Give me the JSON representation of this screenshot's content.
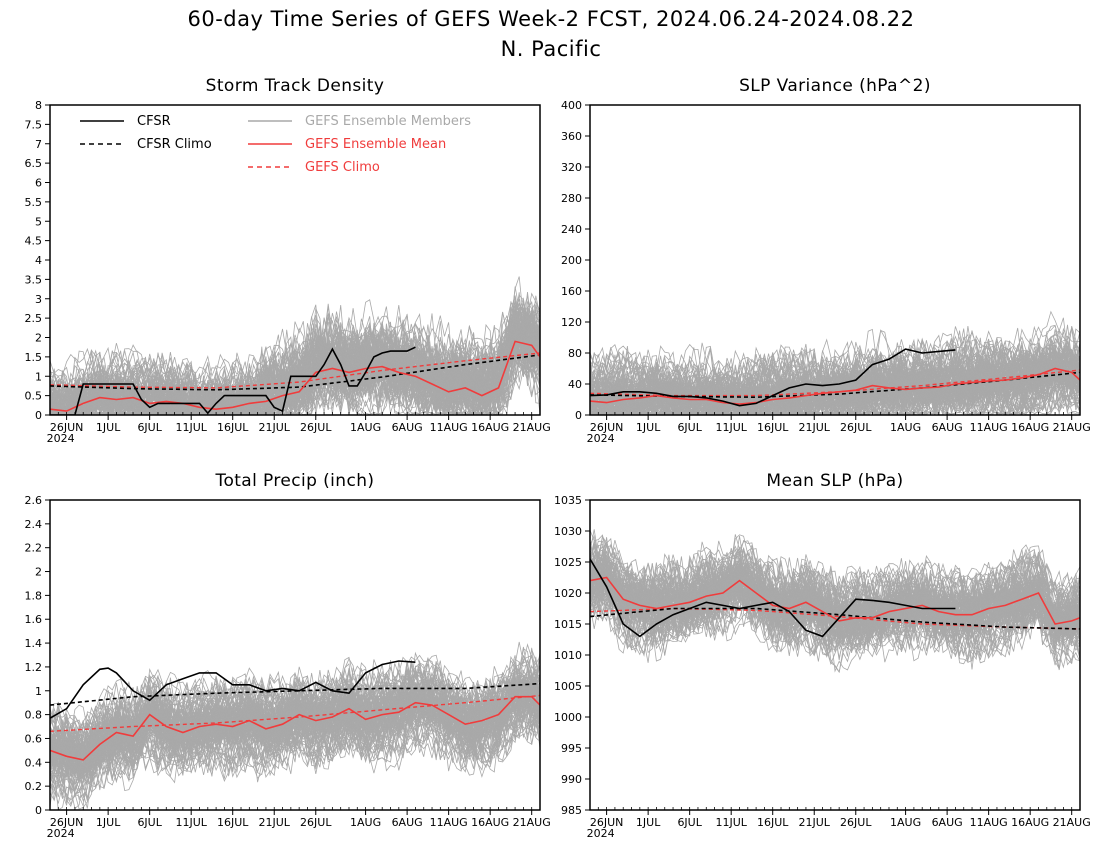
{
  "figure": {
    "title_line1": "60-day Time Series of GEFS Week-2 FCST, 2024.06.24-2024.08.22",
    "title_line2": "N. Pacific",
    "year_label": "2024"
  },
  "colors": {
    "cfsr": "#000000",
    "cfsr_climo": "#000000",
    "ensemble_members": "#a9a9a9",
    "ensemble_mean": "#f03c3c",
    "gefs_climo": "#f03c3c"
  },
  "legend": {
    "cfsr": "CFSR",
    "cfsr_climo": "CFSR Climo",
    "ensemble_members": "GEFS Ensemble Members",
    "ensemble_mean": "GEFS Ensemble Mean",
    "gefs_climo": "GEFS Climo"
  },
  "x_ticks": [
    {
      "day": 2,
      "label": "26JUN"
    },
    {
      "day": 7,
      "label": "1JUL"
    },
    {
      "day": 12,
      "label": "6JUL"
    },
    {
      "day": 17,
      "label": "11JUL"
    },
    {
      "day": 22,
      "label": "16JUL"
    },
    {
      "day": 27,
      "label": "21JUL"
    },
    {
      "day": 32,
      "label": "26JUL"
    },
    {
      "day": 38,
      "label": "1AUG"
    },
    {
      "day": 43,
      "label": "6AUG"
    },
    {
      "day": 48,
      "label": "11AUG"
    },
    {
      "day": 53,
      "label": "16AUG"
    },
    {
      "day": 58,
      "label": "21AUG"
    }
  ],
  "chart_data": [
    {
      "type": "line",
      "title": "Storm Track Density",
      "xlim": [
        "2024-06-24",
        "2024-08-22"
      ],
      "ylim": [
        0,
        8
      ],
      "yticks": [
        "0",
        "0.5",
        "1",
        "1.5",
        "2",
        "2.5",
        "3",
        "3.5",
        "4",
        "4.5",
        "5",
        "5.5",
        "6",
        "6.5",
        "7",
        "7.5",
        "8"
      ],
      "legend_position": "top-left",
      "series": [
        {
          "name": "CFSR",
          "x_day": [
            0,
            3,
            4,
            5,
            6,
            7,
            8,
            9,
            10,
            11,
            12,
            13,
            14,
            15,
            16,
            17,
            18,
            19,
            20,
            21,
            22,
            23,
            24,
            25,
            26,
            27,
            28,
            29,
            30,
            31,
            32,
            33,
            34,
            35,
            36,
            37,
            38,
            39,
            40,
            41,
            42,
            43,
            44
          ],
          "values": [
            0,
            0,
            0.8,
            0.8,
            0.8,
            0.8,
            0.8,
            0.8,
            0.8,
            0.4,
            0.2,
            0.3,
            0.3,
            0.3,
            0.3,
            0.3,
            0.3,
            0.05,
            0.3,
            0.5,
            0.5,
            0.5,
            0.5,
            0.5,
            0.5,
            0.2,
            0.1,
            1.0,
            1.0,
            1.0,
            1.0,
            1.3,
            1.7,
            1.3,
            0.75,
            0.75,
            1.1,
            1.5,
            1.6,
            1.65,
            1.65,
            1.65,
            1.75
          ]
        },
        {
          "name": "CFSR Climo",
          "x_day": [
            0,
            10,
            20,
            30,
            40,
            50,
            59
          ],
          "values": [
            0.75,
            0.68,
            0.65,
            0.72,
            0.98,
            1.3,
            1.55
          ]
        },
        {
          "name": "GEFS Ensemble Mean",
          "x_day": [
            0,
            2,
            4,
            6,
            8,
            10,
            12,
            14,
            16,
            18,
            20,
            22,
            24,
            26,
            28,
            30,
            32,
            34,
            36,
            38,
            40,
            42,
            44,
            46,
            48,
            50,
            52,
            54,
            56,
            58,
            59
          ],
          "values": [
            0.15,
            0.1,
            0.3,
            0.45,
            0.4,
            0.45,
            0.3,
            0.35,
            0.3,
            0.2,
            0.15,
            0.2,
            0.3,
            0.35,
            0.5,
            0.6,
            1.1,
            1.2,
            1.1,
            1.2,
            1.25,
            1.1,
            1.0,
            0.8,
            0.6,
            0.7,
            0.5,
            0.7,
            1.9,
            1.8,
            1.5
          ]
        },
        {
          "name": "GEFS Climo",
          "x_day": [
            0,
            10,
            20,
            30,
            40,
            50,
            59
          ],
          "values": [
            0.78,
            0.72,
            0.7,
            0.85,
            1.15,
            1.4,
            1.6
          ]
        }
      ]
    },
    {
      "type": "line",
      "title": "SLP Variance (hPa^2)",
      "xlim": [
        "2024-06-24",
        "2024-08-22"
      ],
      "ylim": [
        0,
        400
      ],
      "yticks": [
        "0",
        "40",
        "80",
        "120",
        "160",
        "200",
        "240",
        "280",
        "320",
        "360",
        "400"
      ],
      "series": [
        {
          "name": "CFSR",
          "x_day": [
            0,
            2,
            4,
            6,
            8,
            10,
            12,
            14,
            16,
            18,
            20,
            22,
            24,
            26,
            28,
            30,
            32,
            34,
            36,
            38,
            40,
            42,
            44
          ],
          "values": [
            25,
            26,
            30,
            30,
            28,
            24,
            24,
            22,
            18,
            12,
            15,
            25,
            35,
            40,
            38,
            40,
            45,
            65,
            72,
            85,
            80,
            82,
            84
          ]
        },
        {
          "name": "CFSR Climo",
          "x_day": [
            0,
            10,
            20,
            30,
            40,
            50,
            59
          ],
          "values": [
            26,
            24,
            23,
            27,
            35,
            45,
            55
          ]
        },
        {
          "name": "GEFS Ensemble Mean",
          "x_day": [
            0,
            2,
            4,
            6,
            8,
            10,
            12,
            14,
            16,
            18,
            20,
            22,
            24,
            26,
            28,
            30,
            32,
            34,
            36,
            38,
            40,
            42,
            44,
            46,
            48,
            50,
            52,
            54,
            56,
            58,
            59
          ],
          "values": [
            18,
            16,
            20,
            22,
            25,
            22,
            20,
            20,
            16,
            14,
            16,
            20,
            22,
            25,
            28,
            30,
            32,
            38,
            35,
            33,
            35,
            36,
            40,
            42,
            44,
            45,
            48,
            52,
            60,
            55,
            45
          ]
        },
        {
          "name": "GEFS Climo",
          "x_day": [
            0,
            10,
            20,
            30,
            40,
            50,
            59
          ],
          "values": [
            28,
            25,
            25,
            30,
            38,
            48,
            58
          ]
        }
      ]
    },
    {
      "type": "line",
      "title": "Total Precip (inch)",
      "xlim": [
        "2024-06-24",
        "2024-08-22"
      ],
      "ylim": [
        0,
        2.6
      ],
      "yticks": [
        "0",
        "0.2",
        "0.4",
        "0.6",
        "0.8",
        "1",
        "1.2",
        "1.4",
        "1.6",
        "1.8",
        "2",
        "2.2",
        "2.4",
        "2.6"
      ],
      "series": [
        {
          "name": "CFSR",
          "x_day": [
            0,
            2,
            4,
            6,
            7,
            8,
            10,
            12,
            14,
            16,
            18,
            20,
            22,
            24,
            26,
            28,
            30,
            32,
            34,
            36,
            38,
            40,
            42,
            44
          ],
          "values": [
            0.77,
            0.85,
            1.05,
            1.18,
            1.19,
            1.15,
            1.0,
            0.92,
            1.05,
            1.1,
            1.15,
            1.15,
            1.05,
            1.05,
            1.0,
            1.02,
            1.0,
            1.07,
            1.0,
            0.98,
            1.15,
            1.22,
            1.25,
            1.24
          ]
        },
        {
          "name": "CFSR Climo",
          "x_day": [
            0,
            10,
            20,
            30,
            40,
            50,
            59
          ],
          "values": [
            0.88,
            0.95,
            0.98,
            1.0,
            1.02,
            1.02,
            1.06
          ]
        },
        {
          "name": "GEFS Ensemble Mean",
          "x_day": [
            0,
            2,
            4,
            6,
            8,
            10,
            12,
            14,
            16,
            18,
            20,
            22,
            24,
            26,
            28,
            30,
            32,
            34,
            36,
            38,
            40,
            42,
            44,
            46,
            48,
            50,
            52,
            54,
            56,
            58,
            59
          ],
          "values": [
            0.5,
            0.45,
            0.42,
            0.55,
            0.65,
            0.62,
            0.8,
            0.7,
            0.65,
            0.7,
            0.72,
            0.7,
            0.75,
            0.68,
            0.72,
            0.8,
            0.75,
            0.78,
            0.85,
            0.76,
            0.8,
            0.82,
            0.9,
            0.88,
            0.8,
            0.72,
            0.75,
            0.8,
            0.95,
            0.95,
            0.88
          ]
        },
        {
          "name": "GEFS Climo",
          "x_day": [
            0,
            10,
            20,
            30,
            40,
            50,
            59
          ],
          "values": [
            0.66,
            0.7,
            0.73,
            0.78,
            0.84,
            0.9,
            0.96
          ]
        }
      ]
    },
    {
      "type": "line",
      "title": "Mean SLP (hPa)",
      "xlim": [
        "2024-06-24",
        "2024-08-22"
      ],
      "ylim": [
        985,
        1035
      ],
      "yticks": [
        "985",
        "990",
        "995",
        "1000",
        "1005",
        "1010",
        "1015",
        "1020",
        "1025",
        "1030",
        "1035"
      ],
      "series": [
        {
          "name": "CFSR",
          "x_day": [
            0,
            2,
            4,
            6,
            8,
            10,
            12,
            14,
            16,
            18,
            20,
            22,
            24,
            26,
            28,
            30,
            32,
            34,
            36,
            38,
            40,
            42,
            44
          ],
          "values": [
            1025.5,
            1021,
            1015,
            1013,
            1015,
            1016.5,
            1017.5,
            1018.5,
            1018,
            1017.5,
            1018,
            1018.5,
            1017,
            1014,
            1013,
            1016,
            1019,
            1018.8,
            1018.5,
            1018,
            1017.5,
            1017.5,
            1017.5
          ]
        },
        {
          "name": "CFSR Climo",
          "x_day": [
            0,
            10,
            20,
            30,
            40,
            50,
            59
          ],
          "values": [
            1016.2,
            1017.5,
            1017.5,
            1016.5,
            1015.3,
            1014.5,
            1014.2
          ]
        },
        {
          "name": "GEFS Ensemble Mean",
          "x_day": [
            0,
            2,
            4,
            6,
            8,
            10,
            12,
            14,
            16,
            18,
            20,
            22,
            24,
            26,
            28,
            30,
            32,
            34,
            36,
            38,
            40,
            42,
            44,
            46,
            48,
            50,
            52,
            54,
            56,
            58,
            59
          ],
          "values": [
            1022,
            1022.5,
            1019,
            1018,
            1017.5,
            1018,
            1018.5,
            1019.5,
            1020,
            1022,
            1020,
            1018,
            1017.5,
            1018.5,
            1017,
            1015.5,
            1016,
            1016,
            1017,
            1017.5,
            1018,
            1017,
            1016.5,
            1016.5,
            1017.5,
            1018,
            1019,
            1020,
            1015,
            1015.5,
            1016
          ]
        },
        {
          "name": "GEFS Climo",
          "x_day": [
            0,
            10,
            20,
            30,
            40,
            50,
            59
          ],
          "values": [
            1017,
            1017.5,
            1017.2,
            1016.2,
            1015,
            1014.5,
            1014.2
          ]
        }
      ]
    }
  ]
}
